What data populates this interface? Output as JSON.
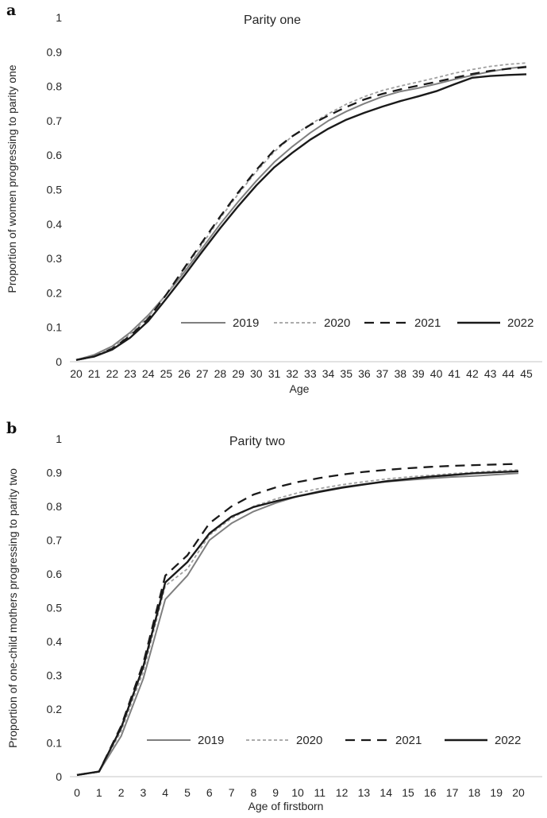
{
  "figure": {
    "background": "#ffffff",
    "text_color": "#262626",
    "axis_color": "#d9d9d9"
  },
  "chart_data": [
    {
      "type": "line",
      "panel_label": "a",
      "title": "Parity one",
      "xlabel": "Age",
      "ylabel": "Proportion of women progressing to parity one",
      "x": [
        20,
        21,
        22,
        23,
        24,
        25,
        26,
        27,
        28,
        29,
        30,
        31,
        32,
        33,
        34,
        35,
        36,
        37,
        38,
        39,
        40,
        41,
        42,
        43,
        44,
        45
      ],
      "ylim": [
        0,
        1
      ],
      "ytick_labels": [
        "0",
        "0.1",
        "0.2",
        "0.3",
        "0.4",
        "0.5",
        "0.6",
        "0.7",
        "0.8",
        "0.9",
        "1"
      ],
      "grid": "off",
      "legend_position": "inside-bottom",
      "series": [
        {
          "name": "2019",
          "color": "#7f7f7f",
          "style": "solid",
          "width": 2,
          "values": [
            0.005,
            0.02,
            0.045,
            0.085,
            0.135,
            0.195,
            0.26,
            0.33,
            0.4,
            0.465,
            0.525,
            0.58,
            0.625,
            0.665,
            0.7,
            0.727,
            0.75,
            0.77,
            0.785,
            0.795,
            0.807,
            0.82,
            0.832,
            0.843,
            0.852,
            0.858
          ]
        },
        {
          "name": "2020",
          "color": "#a0a0a0",
          "style": "dotted",
          "width": 1.8,
          "values": [
            0.005,
            0.015,
            0.04,
            0.08,
            0.13,
            0.195,
            0.268,
            0.342,
            0.417,
            0.487,
            0.552,
            0.61,
            0.655,
            0.69,
            0.72,
            0.748,
            0.77,
            0.788,
            0.801,
            0.813,
            0.825,
            0.838,
            0.849,
            0.858,
            0.864,
            0.868
          ]
        },
        {
          "name": "2021",
          "color": "#1a1a1a",
          "style": "dashed",
          "width": 2.3,
          "values": [
            0.005,
            0.015,
            0.038,
            0.075,
            0.125,
            0.195,
            0.272,
            0.348,
            0.422,
            0.492,
            0.557,
            0.615,
            0.655,
            0.688,
            0.715,
            0.74,
            0.762,
            0.778,
            0.791,
            0.802,
            0.813,
            0.825,
            0.836,
            0.845,
            0.851,
            0.856
          ]
        },
        {
          "name": "2022",
          "color": "#1a1a1a",
          "style": "solid",
          "width": 2.4,
          "values": [
            0.005,
            0.015,
            0.035,
            0.07,
            0.118,
            0.183,
            0.25,
            0.32,
            0.388,
            0.452,
            0.512,
            0.565,
            0.607,
            0.645,
            0.677,
            0.703,
            0.723,
            0.741,
            0.757,
            0.771,
            0.786,
            0.806,
            0.825,
            0.83,
            0.833,
            0.835
          ]
        }
      ]
    },
    {
      "type": "line",
      "panel_label": "b",
      "title": "Parity two",
      "xlabel": "Age of firstborn",
      "ylabel": "Proportion of one-child mothers progressing to parity two",
      "x": [
        0,
        1,
        2,
        3,
        4,
        5,
        6,
        7,
        8,
        9,
        10,
        11,
        12,
        13,
        14,
        15,
        16,
        17,
        18,
        19,
        20
      ],
      "ylim": [
        0,
        1
      ],
      "ytick_labels": [
        "0",
        "0.1",
        "0.2",
        "0.3",
        "0.4",
        "0.5",
        "0.6",
        "0.7",
        "0.8",
        "0.9",
        "1"
      ],
      "grid": "off",
      "legend_position": "inside-bottom",
      "series": [
        {
          "name": "2019",
          "color": "#7f7f7f",
          "style": "solid",
          "width": 2,
          "values": [
            0.005,
            0.015,
            0.12,
            0.29,
            0.525,
            0.595,
            0.7,
            0.75,
            0.785,
            0.81,
            0.83,
            0.845,
            0.857,
            0.866,
            0.873,
            0.878,
            0.883,
            0.887,
            0.89,
            0.894,
            0.898
          ]
        },
        {
          "name": "2020",
          "color": "#a0a0a0",
          "style": "dotted",
          "width": 1.8,
          "values": [
            0.005,
            0.015,
            0.135,
            0.31,
            0.565,
            0.615,
            0.715,
            0.765,
            0.8,
            0.822,
            0.84,
            0.853,
            0.864,
            0.873,
            0.881,
            0.887,
            0.892,
            0.897,
            0.901,
            0.905,
            0.908
          ]
        },
        {
          "name": "2021",
          "color": "#1a1a1a",
          "style": "dashed",
          "width": 2.3,
          "values": [
            0.005,
            0.015,
            0.15,
            0.335,
            0.595,
            0.655,
            0.75,
            0.8,
            0.835,
            0.856,
            0.872,
            0.884,
            0.894,
            0.902,
            0.908,
            0.913,
            0.917,
            0.92,
            0.922,
            0.924,
            0.926
          ]
        },
        {
          "name": "2022",
          "color": "#1a1a1a",
          "style": "solid",
          "width": 2.4,
          "values": [
            0.005,
            0.015,
            0.145,
            0.325,
            0.575,
            0.635,
            0.72,
            0.77,
            0.798,
            0.815,
            0.83,
            0.843,
            0.855,
            0.865,
            0.874,
            0.881,
            0.888,
            0.893,
            0.898,
            0.901,
            0.904
          ]
        }
      ]
    }
  ]
}
